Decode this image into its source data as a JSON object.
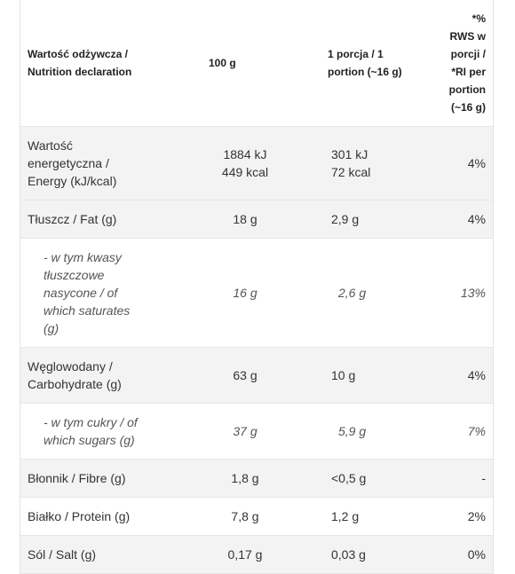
{
  "table": {
    "header": [
      [
        "Wartość odżywcza /",
        "Nutrition declaration"
      ],
      [
        "100 g"
      ],
      [
        "1 porcja / 1",
        "portion (~16 g)"
      ],
      [
        "*% RWS w porcji /",
        "*RI per portion",
        "(~16 g)"
      ]
    ],
    "rows": [
      {
        "shaded": true,
        "italic": false,
        "cells": [
          [
            "Wartość",
            "energetyczna /",
            "Energy (kJ/kcal)"
          ],
          [
            "1884 kJ",
            "449 kcal"
          ],
          [
            "301 kJ",
            "72 kcal"
          ],
          [
            "4%"
          ]
        ]
      },
      {
        "shaded": true,
        "italic": false,
        "cells": [
          [
            "Tłuszcz / Fat (g)"
          ],
          [
            "18 g"
          ],
          [
            "2,9 g"
          ],
          [
            "4%"
          ]
        ]
      },
      {
        "shaded": false,
        "italic": true,
        "cells": [
          [
            "- w tym kwasy",
            "tłuszczowe",
            "nasycone / of",
            "which saturates",
            "(g)"
          ],
          [
            "16 g"
          ],
          [
            "2,6 g"
          ],
          [
            "13%"
          ]
        ]
      },
      {
        "shaded": true,
        "italic": false,
        "cells": [
          [
            "Węglowodany /",
            "Carbohydrate (g)"
          ],
          [
            "63 g"
          ],
          [
            "10 g"
          ],
          [
            "4%"
          ]
        ]
      },
      {
        "shaded": false,
        "italic": true,
        "cells": [
          [
            "- w tym cukry / of",
            "which sugars (g)"
          ],
          [
            "37 g"
          ],
          [
            "5,9 g"
          ],
          [
            "7%"
          ]
        ]
      },
      {
        "shaded": true,
        "italic": false,
        "cells": [
          [
            "Błonnik / Fibre (g)"
          ],
          [
            "1,8 g"
          ],
          [
            "<0,5 g"
          ],
          [
            "-"
          ]
        ]
      },
      {
        "shaded": false,
        "italic": false,
        "cells": [
          [
            "Białko / Protein (g)"
          ],
          [
            "7,8 g"
          ],
          [
            "1,2 g"
          ],
          [
            "2%"
          ]
        ]
      },
      {
        "shaded": true,
        "italic": false,
        "cells": [
          [
            "Sól / Salt (g)"
          ],
          [
            "0,17 g"
          ],
          [
            "0,03 g"
          ],
          [
            "0%"
          ]
        ]
      }
    ]
  }
}
